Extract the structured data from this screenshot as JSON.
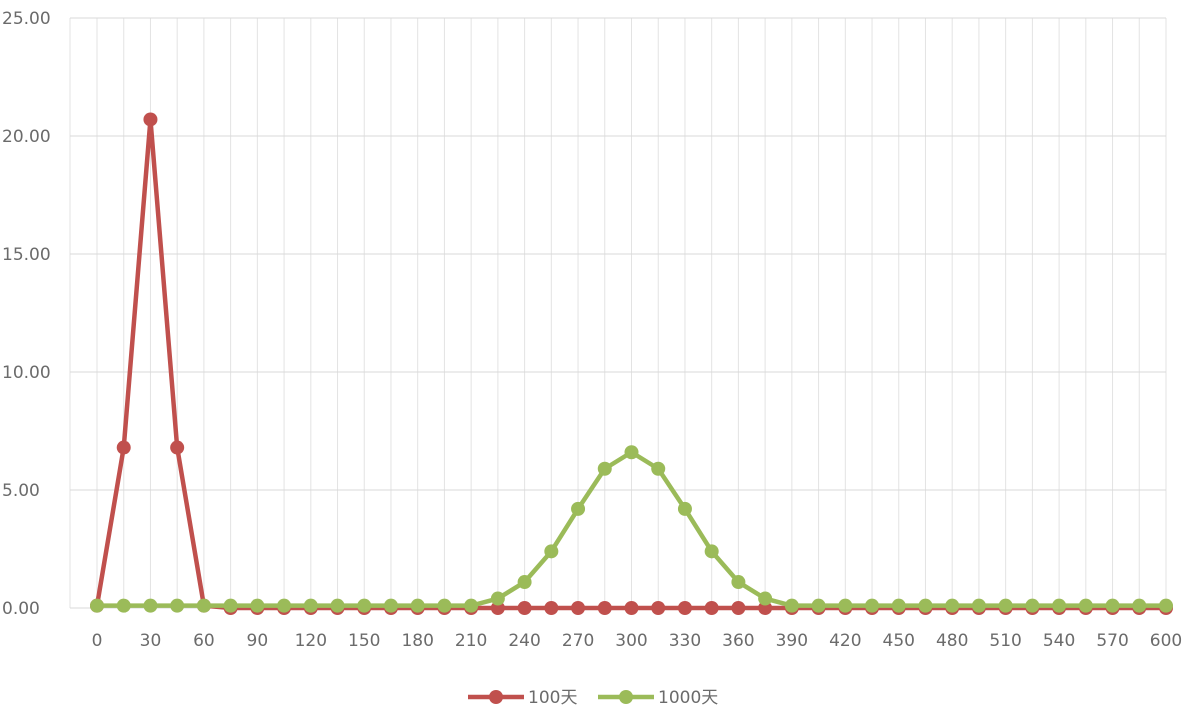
{
  "chart_data": {
    "type": "line",
    "x": [
      0,
      15,
      30,
      45,
      60,
      75,
      90,
      105,
      120,
      135,
      150,
      165,
      180,
      195,
      210,
      225,
      240,
      255,
      270,
      285,
      300,
      315,
      330,
      345,
      360,
      375,
      390,
      405,
      420,
      435,
      450,
      465,
      480,
      495,
      510,
      525,
      540,
      555,
      570,
      585,
      600
    ],
    "xticks": [
      "0",
      "30",
      "60",
      "90",
      "120",
      "150",
      "180",
      "210",
      "240",
      "270",
      "300",
      "330",
      "360",
      "390",
      "420",
      "450",
      "480",
      "510",
      "540",
      "570",
      "600"
    ],
    "yticks": [
      "0.00",
      "5.00",
      "10.00",
      "15.00",
      "20.00",
      "25.00"
    ],
    "xlim": [
      0,
      600
    ],
    "ylim": [
      0,
      25
    ],
    "grid": true,
    "legend_position": "bottom",
    "series": [
      {
        "name": "100天",
        "color": "#c0504d",
        "values": [
          0.1,
          6.8,
          20.7,
          6.8,
          0.1,
          0,
          0,
          0,
          0,
          0,
          0,
          0,
          0,
          0,
          0,
          0,
          0,
          0,
          0,
          0,
          0,
          0,
          0,
          0,
          0,
          0,
          0,
          0,
          0,
          0,
          0,
          0,
          0,
          0,
          0,
          0,
          0,
          0,
          0,
          0,
          0
        ]
      },
      {
        "name": "1000天",
        "color": "#9bbb59",
        "values": [
          0.1,
          0.1,
          0.1,
          0.1,
          0.1,
          0.1,
          0.1,
          0.1,
          0.1,
          0.1,
          0.1,
          0.1,
          0.1,
          0.1,
          0.1,
          0.4,
          1.1,
          2.4,
          4.2,
          5.9,
          6.6,
          5.9,
          4.2,
          2.4,
          1.1,
          0.4,
          0.1,
          0.1,
          0.1,
          0.1,
          0.1,
          0.1,
          0.1,
          0.1,
          0.1,
          0.1,
          0.1,
          0.1,
          0.1,
          0.1,
          0.1
        ]
      }
    ]
  }
}
